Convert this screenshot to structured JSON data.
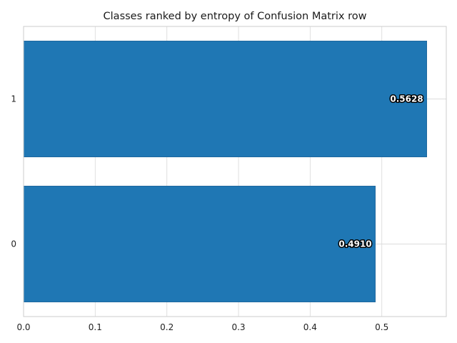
{
  "chart_data": {
    "type": "bar",
    "orientation": "horizontal",
    "title": "Classes ranked by entropy of Confusion Matrix row",
    "xlabel": "",
    "ylabel": "",
    "categories": [
      "0",
      "1"
    ],
    "values": [
      0.491,
      0.5628
    ],
    "value_labels": [
      "0.4910",
      "0.5628"
    ],
    "xlim": [
      0,
      0.59
    ],
    "xticks": [
      0.0,
      0.1,
      0.2,
      0.3,
      0.4,
      0.5
    ],
    "xtick_labels": [
      "0.0",
      "0.1",
      "0.2",
      "0.3",
      "0.4",
      "0.5"
    ],
    "grid": true,
    "bar_color": "#1f77b4"
  }
}
